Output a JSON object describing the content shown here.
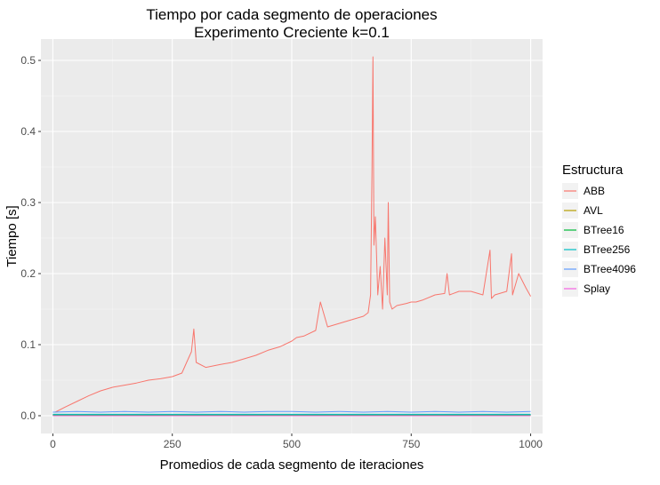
{
  "chart_data": {
    "type": "line",
    "title": "Tiempo por cada segmento de operaciones",
    "subtitle": "Experimento Creciente k=0.1",
    "xlabel": "Promedios de cada segmento de iteraciones",
    "ylabel": "Tiempo [s]",
    "xlim": [
      -25,
      1025
    ],
    "ylim": [
      -0.025,
      0.53
    ],
    "x_ticks": [
      0,
      250,
      500,
      750,
      1000
    ],
    "x_tick_labels": [
      "0",
      "250",
      "500",
      "750",
      "1000"
    ],
    "y_ticks": [
      0.0,
      0.1,
      0.2,
      0.3,
      0.4,
      0.5
    ],
    "y_tick_labels": [
      "0.0",
      "0.1",
      "0.2",
      "0.3",
      "0.4",
      "0.5"
    ],
    "grid": true,
    "legend": {
      "title": "Estructura",
      "position": "right"
    },
    "series": [
      {
        "name": "ABB",
        "color": "#F8766D",
        "x": [
          5,
          25,
          50,
          75,
          100,
          125,
          150,
          175,
          200,
          225,
          250,
          270,
          280,
          290,
          295,
          300,
          320,
          350,
          375,
          400,
          425,
          450,
          475,
          500,
          510,
          525,
          550,
          560,
          575,
          600,
          625,
          650,
          660,
          665,
          668,
          670,
          672,
          675,
          680,
          685,
          690,
          695,
          700,
          702,
          705,
          710,
          720,
          740,
          750,
          760,
          775,
          800,
          820,
          825,
          830,
          850,
          875,
          900,
          915,
          918,
          925,
          950,
          960,
          962,
          975,
          990,
          1000
        ],
        "values": [
          0.005,
          0.012,
          0.02,
          0.028,
          0.035,
          0.04,
          0.043,
          0.046,
          0.05,
          0.052,
          0.055,
          0.06,
          0.075,
          0.09,
          0.122,
          0.075,
          0.068,
          0.072,
          0.075,
          0.08,
          0.085,
          0.092,
          0.097,
          0.105,
          0.11,
          0.112,
          0.12,
          0.16,
          0.125,
          0.13,
          0.135,
          0.14,
          0.145,
          0.17,
          0.345,
          0.505,
          0.24,
          0.28,
          0.17,
          0.21,
          0.15,
          0.25,
          0.17,
          0.3,
          0.16,
          0.15,
          0.155,
          0.158,
          0.16,
          0.16,
          0.163,
          0.17,
          0.172,
          0.2,
          0.17,
          0.175,
          0.175,
          0.17,
          0.233,
          0.165,
          0.17,
          0.175,
          0.228,
          0.17,
          0.2,
          0.18,
          0.168
        ]
      },
      {
        "name": "AVL",
        "color": "#B79F00",
        "x": [
          0,
          250,
          500,
          750,
          1000
        ],
        "values": [
          0.001,
          0.001,
          0.001,
          0.001,
          0.001
        ]
      },
      {
        "name": "BTree16",
        "color": "#00BA38",
        "x": [
          0,
          250,
          500,
          750,
          1000
        ],
        "values": [
          0.001,
          0.001,
          0.001,
          0.001,
          0.001
        ]
      },
      {
        "name": "BTree256",
        "color": "#00BFC4",
        "x": [
          0,
          250,
          500,
          750,
          1000
        ],
        "values": [
          0.002,
          0.002,
          0.002,
          0.002,
          0.002
        ]
      },
      {
        "name": "BTree4096",
        "color": "#619CFF",
        "x": [
          0,
          50,
          100,
          150,
          200,
          250,
          300,
          350,
          400,
          450,
          500,
          550,
          600,
          650,
          700,
          750,
          800,
          850,
          900,
          950,
          1000
        ],
        "values": [
          0.005,
          0.006,
          0.005,
          0.006,
          0.005,
          0.006,
          0.005,
          0.006,
          0.005,
          0.006,
          0.006,
          0.005,
          0.006,
          0.005,
          0.006,
          0.005,
          0.006,
          0.005,
          0.006,
          0.005,
          0.006
        ]
      },
      {
        "name": "Splay",
        "color": "#F564E3",
        "x": [
          0,
          250,
          500,
          750,
          1000
        ],
        "values": [
          0.0,
          0.0,
          0.0,
          0.0,
          0.0
        ]
      }
    ]
  }
}
